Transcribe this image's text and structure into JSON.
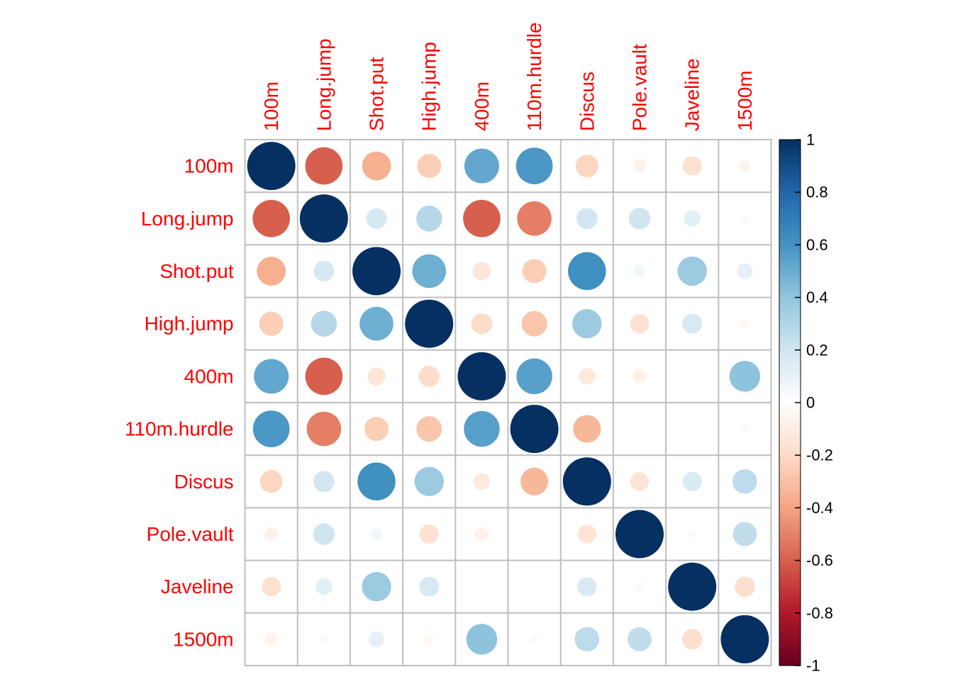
{
  "chart_data": {
    "type": "heatmap",
    "title": "",
    "xlabel": "",
    "ylabel": "",
    "variables": [
      "100m",
      "Long.jump",
      "Shot.put",
      "High.jump",
      "400m",
      "110m.hurdle",
      "Discus",
      "Pole.vault",
      "Javeline",
      "1500m"
    ],
    "matrix": [
      [
        1.0,
        -0.6,
        -0.36,
        -0.25,
        0.52,
        0.58,
        -0.22,
        -0.08,
        -0.16,
        -0.06
      ],
      [
        -0.6,
        1.0,
        0.18,
        0.29,
        -0.6,
        -0.51,
        0.19,
        0.2,
        0.12,
        -0.03
      ],
      [
        -0.36,
        0.18,
        1.0,
        0.49,
        -0.14,
        -0.25,
        0.62,
        0.06,
        0.37,
        0.11
      ],
      [
        -0.25,
        0.29,
        0.49,
        1.0,
        -0.19,
        -0.28,
        0.37,
        -0.16,
        0.17,
        -0.04
      ],
      [
        0.52,
        -0.6,
        -0.14,
        -0.19,
        1.0,
        0.55,
        -0.12,
        -0.08,
        0.0,
        0.41
      ],
      [
        0.58,
        -0.51,
        -0.25,
        -0.28,
        0.55,
        1.0,
        -0.33,
        0.0,
        0.0,
        0.03
      ],
      [
        -0.22,
        0.19,
        0.62,
        0.37,
        -0.12,
        -0.33,
        1.0,
        -0.15,
        0.16,
        0.26
      ],
      [
        -0.08,
        0.2,
        0.06,
        -0.16,
        -0.08,
        0.0,
        -0.15,
        1.0,
        -0.03,
        0.25
      ],
      [
        -0.16,
        0.12,
        0.37,
        0.17,
        0.0,
        0.0,
        0.16,
        -0.03,
        1.0,
        -0.18
      ],
      [
        -0.06,
        -0.03,
        0.11,
        -0.04,
        0.41,
        0.03,
        0.26,
        0.25,
        -0.18,
        1.0
      ]
    ],
    "colorbar": {
      "range": [
        -1,
        1
      ],
      "ticks": [
        "1",
        "0.8",
        "0.6",
        "0.4",
        "0.2",
        "0",
        "-0.2",
        "-0.4",
        "-0.6",
        "-0.8",
        "-1"
      ],
      "placement": "right"
    },
    "grid": true,
    "colors": {
      "label": "#ff0000",
      "grid": "#bebebe",
      "tick_text": "#000000"
    }
  }
}
